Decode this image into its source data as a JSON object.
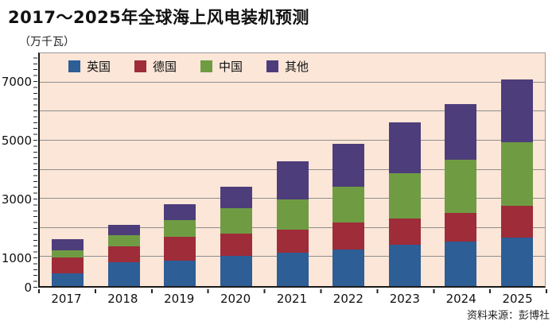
{
  "header": {
    "title": "2017～2025年全球海上风电装机预测",
    "unit_label": "（万千瓦）"
  },
  "footer": {
    "source": "资料来源：彭博社"
  },
  "colors": {
    "uk": "#2d5e96",
    "germany": "#9e2c39",
    "china": "#6f9c43",
    "others": "#4e3d7b",
    "plot_background": "#fbe6d7",
    "gridline": "#8f8f8f",
    "axis": "#1a1a1a",
    "page_background": "#ffffff",
    "text": "#111111"
  },
  "chart_data": {
    "type": "bar",
    "stacked": true,
    "title": "2017～2025年全球海上风电装机预测",
    "ylabel": "万千瓦",
    "xlabel": "",
    "categories": [
      "2017",
      "2018",
      "2019",
      "2020",
      "2021",
      "2022",
      "2023",
      "2024",
      "2025"
    ],
    "series": [
      {
        "key": "uk",
        "name": "英国",
        "color": "#2d5e96",
        "values": [
          430,
          830,
          880,
          1030,
          1150,
          1260,
          1425,
          1535,
          1670
        ]
      },
      {
        "key": "germany",
        "name": "德国",
        "color": "#9e2c39",
        "values": [
          545,
          530,
          810,
          760,
          795,
          930,
          885,
          990,
          1095
        ]
      },
      {
        "key": "china",
        "name": "中国",
        "color": "#6f9c43",
        "values": [
          250,
          395,
          580,
          890,
          1035,
          1215,
          1555,
          1825,
          2165
        ]
      },
      {
        "key": "others",
        "name": "其他",
        "color": "#4e3d7b",
        "values": [
          395,
          335,
          545,
          725,
          1295,
          1490,
          1750,
          1890,
          2175
        ]
      }
    ],
    "totals": [
      1620,
      2090,
      2815,
      3405,
      4275,
      4895,
      5615,
      6240,
      7105
    ],
    "ylim": [
      0,
      8000
    ],
    "yticks_labeled": [
      0,
      1000,
      3000,
      5000,
      7000
    ],
    "gridline_values": [
      1000,
      2000,
      3000,
      4000,
      5000,
      6000,
      7000
    ],
    "grid": true,
    "legend_position": "top-inside",
    "source": "资料来源：彭博社"
  }
}
